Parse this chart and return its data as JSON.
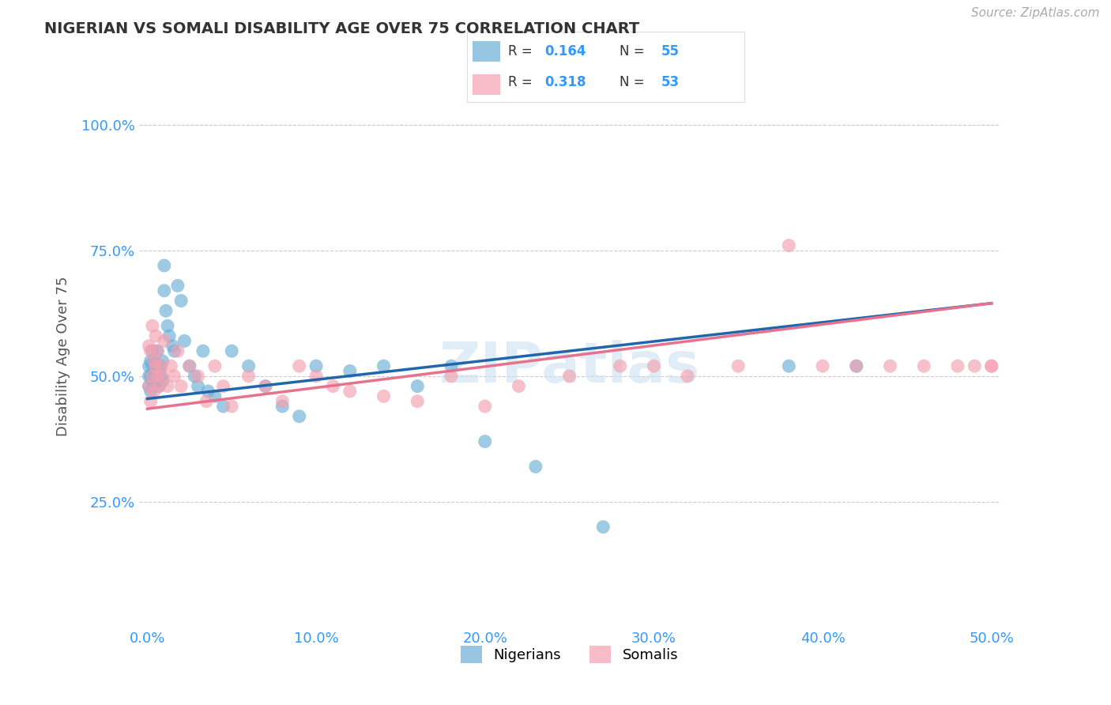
{
  "title": "NIGERIAN VS SOMALI DISABILITY AGE OVER 75 CORRELATION CHART",
  "source": "Source: ZipAtlas.com",
  "ylabel": "Disability Age Over 75",
  "xlim": [
    -0.005,
    0.505
  ],
  "ylim": [
    0.0,
    1.08
  ],
  "xtick_labels": [
    "0.0%",
    "10.0%",
    "20.0%",
    "30.0%",
    "40.0%",
    "50.0%"
  ],
  "xtick_vals": [
    0.0,
    0.1,
    0.2,
    0.3,
    0.4,
    0.5
  ],
  "ytick_labels": [
    "25.0%",
    "50.0%",
    "75.0%",
    "100.0%"
  ],
  "ytick_vals": [
    0.25,
    0.5,
    0.75,
    1.0
  ],
  "nigerian_R": 0.164,
  "nigerian_N": 55,
  "somali_R": 0.318,
  "somali_N": 53,
  "nigerian_color": "#6baed6",
  "somali_color": "#f4a0b0",
  "nigerian_line_color": "#2166ac",
  "somali_line_color": "#e8718d",
  "watermark": "ZIPatlas",
  "nig_line_x0": 0.0,
  "nig_line_y0": 0.455,
  "nig_line_x1": 0.5,
  "nig_line_y1": 0.645,
  "som_line_x0": 0.0,
  "som_line_y0": 0.435,
  "som_line_x1": 0.5,
  "som_line_y1": 0.645,
  "nigerian_x": [
    0.001,
    0.001,
    0.001,
    0.002,
    0.002,
    0.002,
    0.003,
    0.003,
    0.003,
    0.004,
    0.004,
    0.004,
    0.005,
    0.005,
    0.005,
    0.006,
    0.006,
    0.007,
    0.007,
    0.008,
    0.008,
    0.009,
    0.009,
    0.01,
    0.01,
    0.011,
    0.012,
    0.013,
    0.015,
    0.016,
    0.018,
    0.02,
    0.022,
    0.025,
    0.028,
    0.03,
    0.033,
    0.036,
    0.04,
    0.045,
    0.05,
    0.06,
    0.07,
    0.08,
    0.09,
    0.1,
    0.12,
    0.14,
    0.16,
    0.18,
    0.2,
    0.23,
    0.27,
    0.38,
    0.42
  ],
  "nigerian_y": [
    0.52,
    0.5,
    0.48,
    0.53,
    0.5,
    0.47,
    0.52,
    0.49,
    0.55,
    0.5,
    0.48,
    0.53,
    0.52,
    0.49,
    0.51,
    0.5,
    0.55,
    0.51,
    0.48,
    0.52,
    0.5,
    0.49,
    0.53,
    0.72,
    0.67,
    0.63,
    0.6,
    0.58,
    0.56,
    0.55,
    0.68,
    0.65,
    0.57,
    0.52,
    0.5,
    0.48,
    0.55,
    0.47,
    0.46,
    0.44,
    0.55,
    0.52,
    0.48,
    0.44,
    0.42,
    0.52,
    0.51,
    0.52,
    0.48,
    0.52,
    0.37,
    0.32,
    0.2,
    0.52,
    0.52
  ],
  "somali_x": [
    0.001,
    0.001,
    0.002,
    0.002,
    0.003,
    0.003,
    0.004,
    0.004,
    0.005,
    0.005,
    0.006,
    0.006,
    0.007,
    0.008,
    0.009,
    0.01,
    0.012,
    0.014,
    0.016,
    0.018,
    0.02,
    0.025,
    0.03,
    0.035,
    0.04,
    0.045,
    0.05,
    0.06,
    0.07,
    0.08,
    0.09,
    0.1,
    0.11,
    0.12,
    0.14,
    0.16,
    0.18,
    0.2,
    0.22,
    0.25,
    0.28,
    0.3,
    0.32,
    0.35,
    0.38,
    0.4,
    0.42,
    0.44,
    0.46,
    0.48,
    0.49,
    0.5,
    0.5
  ],
  "somali_y": [
    0.56,
    0.48,
    0.55,
    0.45,
    0.6,
    0.5,
    0.53,
    0.47,
    0.58,
    0.52,
    0.5,
    0.55,
    0.48,
    0.52,
    0.5,
    0.57,
    0.48,
    0.52,
    0.5,
    0.55,
    0.48,
    0.52,
    0.5,
    0.45,
    0.52,
    0.48,
    0.44,
    0.5,
    0.48,
    0.45,
    0.52,
    0.5,
    0.48,
    0.47,
    0.46,
    0.45,
    0.5,
    0.44,
    0.48,
    0.5,
    0.52,
    0.52,
    0.5,
    0.52,
    0.76,
    0.52,
    0.52,
    0.52,
    0.52,
    0.52,
    0.52,
    0.52,
    0.52
  ]
}
